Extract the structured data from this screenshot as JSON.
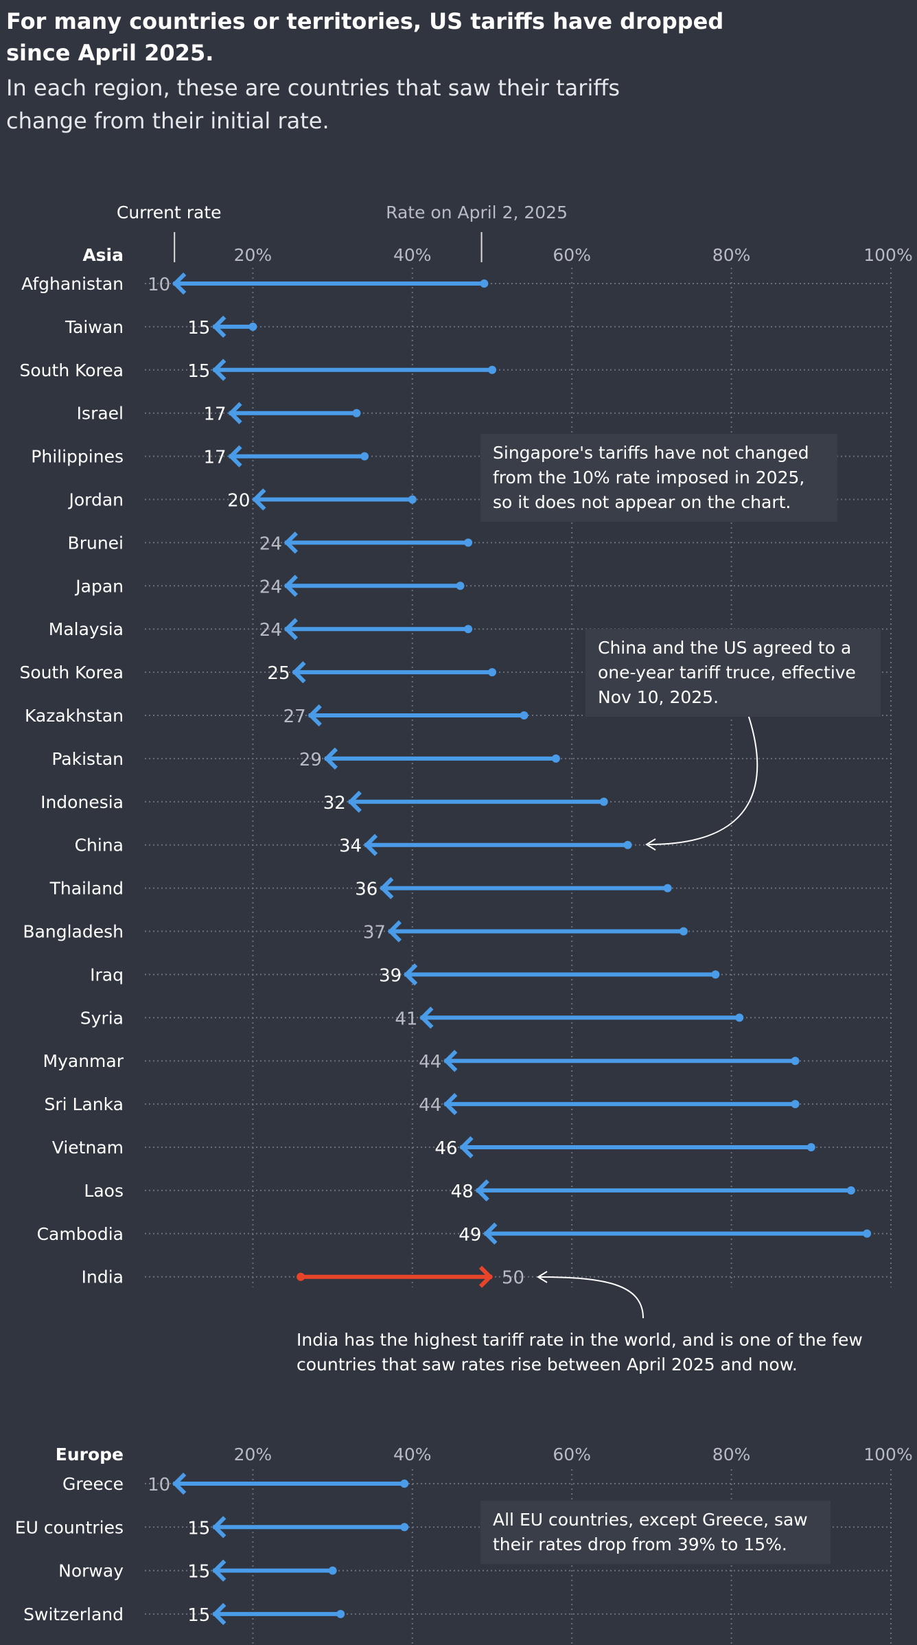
{
  "header": {
    "title": "For many countries or territories, US tariffs have dropped since April 2025.",
    "subtitle": "In each region, these are countries that saw their tariffs change from their initial rate."
  },
  "annotations": {
    "singapore": "Singapore's tariffs have not changed from the 10% rate imposed in 2025, so it does not appear on the chart.",
    "china": "China and the US agreed to a one-year tariff truce, effective Nov 10, 2025.",
    "india": "India has the highest tariff rate in the world, and is one of the few countries that saw rates rise between April 2025 and now.",
    "eu": "All EU countries, except Greece, saw their rates drop from 39% to 15%."
  },
  "colors": {
    "background": "#31353f",
    "decrease": "#4a9be8",
    "increase": "#e8442a",
    "label_light": "#ffffff",
    "label_muted": "#b8bbc2"
  },
  "chart_data": [
    {
      "type": "arrow-dot",
      "region": "Asia",
      "legend": {
        "current": "Current rate",
        "initial": "Rate on April 2, 2025"
      },
      "xlim": [
        0,
        100
      ],
      "ticks": [
        "20%",
        "40%",
        "60%",
        "80%",
        "100%"
      ],
      "tick_values": [
        20,
        40,
        60,
        80,
        100
      ],
      "rows": [
        {
          "country": "Afghanistan",
          "current": 10,
          "initial": 49,
          "muted": true
        },
        {
          "country": "Taiwan",
          "current": 15,
          "initial": 20,
          "muted": false
        },
        {
          "country": "South Korea",
          "current": 15,
          "initial": 50,
          "muted": false
        },
        {
          "country": "Israel",
          "current": 17,
          "initial": 33,
          "muted": false
        },
        {
          "country": "Philippines",
          "current": 17,
          "initial": 34,
          "muted": false
        },
        {
          "country": "Jordan",
          "current": 20,
          "initial": 40,
          "muted": false
        },
        {
          "country": "Brunei",
          "current": 24,
          "initial": 47,
          "muted": true
        },
        {
          "country": "Japan",
          "current": 24,
          "initial": 46,
          "muted": true
        },
        {
          "country": "Malaysia",
          "current": 24,
          "initial": 47,
          "muted": true
        },
        {
          "country": "South Korea",
          "current": 25,
          "initial": 50,
          "muted": false
        },
        {
          "country": "Kazakhstan",
          "current": 27,
          "initial": 54,
          "muted": true
        },
        {
          "country": "Pakistan",
          "current": 29,
          "initial": 58,
          "muted": true
        },
        {
          "country": "Indonesia",
          "current": 32,
          "initial": 64,
          "muted": false
        },
        {
          "country": "China",
          "current": 34,
          "initial": 67,
          "muted": false
        },
        {
          "country": "Thailand",
          "current": 36,
          "initial": 72,
          "muted": false
        },
        {
          "country": "Bangladesh",
          "current": 37,
          "initial": 74,
          "muted": true
        },
        {
          "country": "Iraq",
          "current": 39,
          "initial": 78,
          "muted": false
        },
        {
          "country": "Syria",
          "current": 41,
          "initial": 81,
          "muted": true
        },
        {
          "country": "Myanmar",
          "current": 44,
          "initial": 88,
          "muted": true
        },
        {
          "country": "Sri Lanka",
          "current": 44,
          "initial": 88,
          "muted": true
        },
        {
          "country": "Vietnam",
          "current": 46,
          "initial": 90,
          "muted": false
        },
        {
          "country": "Laos",
          "current": 48,
          "initial": 95,
          "muted": false
        },
        {
          "country": "Cambodia",
          "current": 49,
          "initial": 97,
          "muted": false
        },
        {
          "country": "India",
          "current": 50,
          "initial": 26,
          "muted": true
        }
      ]
    },
    {
      "type": "arrow-dot",
      "region": "Europe",
      "xlim": [
        0,
        100
      ],
      "ticks": [
        "20%",
        "40%",
        "60%",
        "80%",
        "100%"
      ],
      "tick_values": [
        20,
        40,
        60,
        80,
        100
      ],
      "rows": [
        {
          "country": "Greece",
          "current": 10,
          "initial": 39,
          "muted": true
        },
        {
          "country": "EU countries",
          "current": 15,
          "initial": 39,
          "muted": false
        },
        {
          "country": "Norway",
          "current": 15,
          "initial": 30,
          "muted": false
        },
        {
          "country": "Switzerland",
          "current": 15,
          "initial": 31,
          "muted": false
        }
      ]
    }
  ]
}
